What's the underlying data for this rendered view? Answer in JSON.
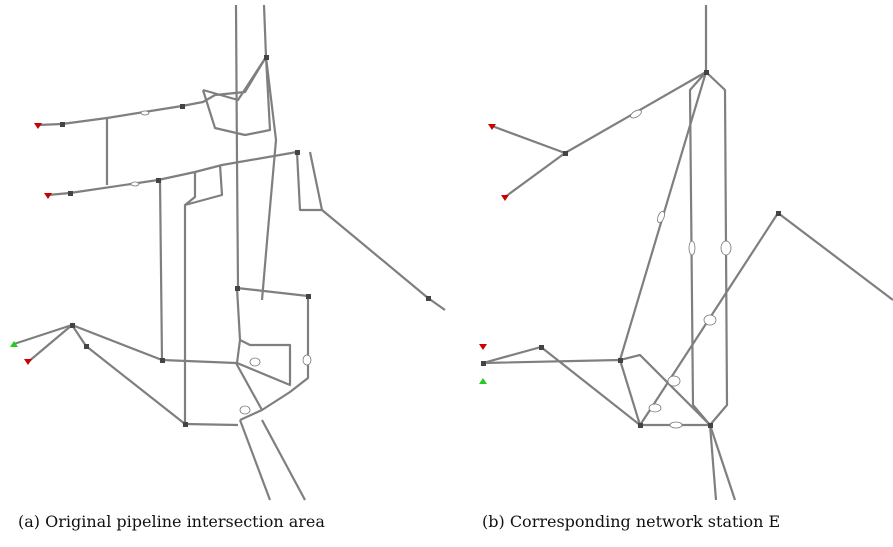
{
  "captions": [
    "(a) Original pipeline intersection area",
    "(b) Corresponding network station E"
  ]
}
